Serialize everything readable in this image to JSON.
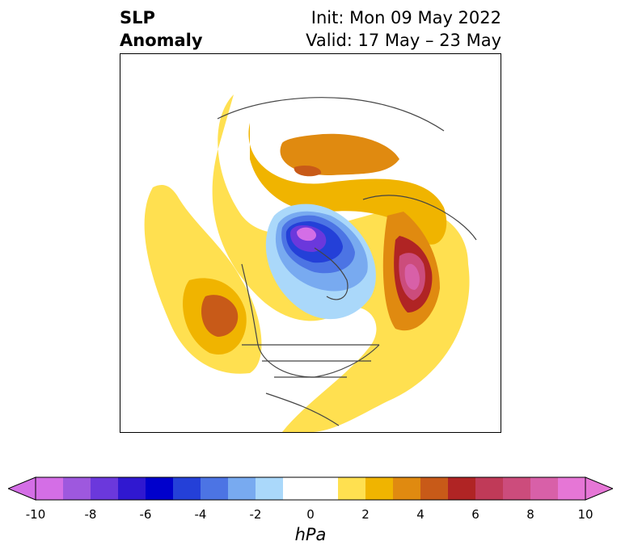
{
  "title": {
    "left_line1": "SLP",
    "left_line2": "Anomaly",
    "right_line1": "Init: Mon 09 May 2022",
    "right_line2": "Valid: 17 May – 23 May"
  },
  "colorbar": {
    "unit": "hPa",
    "tick_labels": [
      "-10",
      "-8",
      "-6",
      "-4",
      "-2",
      "0",
      "2",
      "4",
      "6",
      "8",
      "10"
    ],
    "colors": [
      "#d46ee6",
      "#9e58de",
      "#6b38dc",
      "#3018d0",
      "#0000cc",
      "#2440d8",
      "#4c74e4",
      "#78aaf0",
      "#aad8fa",
      "#ffffff",
      "#ffffff",
      "#ffe050",
      "#f0b400",
      "#e08a10",
      "#c85a18",
      "#b02424",
      "#c03a58",
      "#cc4c7c",
      "#d860a8",
      "#e676d6"
    ],
    "min_extend_color": "#d46ee6",
    "max_extend_color": "#e676d6"
  }
}
